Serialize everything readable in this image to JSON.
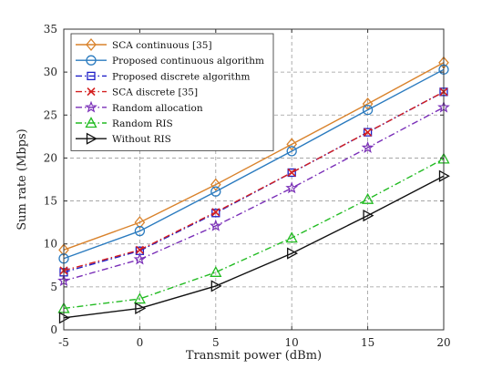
{
  "chart_data": {
    "type": "line",
    "xlabel": "Transmit power (dBm)",
    "ylabel": "Sum rate (Mbps)",
    "x": [
      -5,
      0,
      5,
      10,
      15,
      20
    ],
    "xlim": [
      -5,
      20
    ],
    "ylim": [
      0,
      35
    ],
    "xticks": [
      "-5",
      "0",
      "5",
      "10",
      "15",
      "20"
    ],
    "yticks": [
      "0",
      "5",
      "10",
      "15",
      "20",
      "25",
      "30",
      "35"
    ],
    "grid": true,
    "legend_position": "top-left",
    "series": [
      {
        "name": "SCA continuous [35]",
        "values": [
          9.3,
          12.5,
          16.9,
          21.6,
          26.3,
          31.1
        ],
        "color": "#D9822B",
        "dash": "solid",
        "marker": "diamond"
      },
      {
        "name": "Proposed continuous algorithm",
        "values": [
          8.3,
          11.5,
          16.1,
          20.8,
          25.6,
          30.3
        ],
        "color": "#2B7BBF",
        "dash": "solid",
        "marker": "circle"
      },
      {
        "name": "Proposed discrete algorithm",
        "values": [
          6.7,
          9.2,
          13.6,
          18.3,
          23.0,
          27.7
        ],
        "color": "#1F1FC8",
        "dash": "dashdot",
        "marker": "square"
      },
      {
        "name": "SCA discrete [35]",
        "values": [
          6.9,
          9.3,
          13.7,
          18.3,
          23.0,
          27.7
        ],
        "color": "#D42020",
        "dash": "dashdot",
        "marker": "x"
      },
      {
        "name": "Random allocation",
        "values": [
          5.7,
          8.2,
          12.1,
          16.5,
          21.2,
          25.9
        ],
        "color": "#7A2FB8",
        "dash": "dashdot",
        "marker": "star"
      },
      {
        "name": "Random RIS",
        "values": [
          2.5,
          3.6,
          6.7,
          10.7,
          15.2,
          19.9
        ],
        "color": "#22BB22",
        "dash": "dashdot",
        "marker": "triangle-up"
      },
      {
        "name": "Without RIS",
        "values": [
          1.4,
          2.5,
          5.1,
          8.9,
          13.3,
          17.9
        ],
        "color": "#111111",
        "dash": "solid",
        "marker": "triangle-right"
      }
    ]
  }
}
